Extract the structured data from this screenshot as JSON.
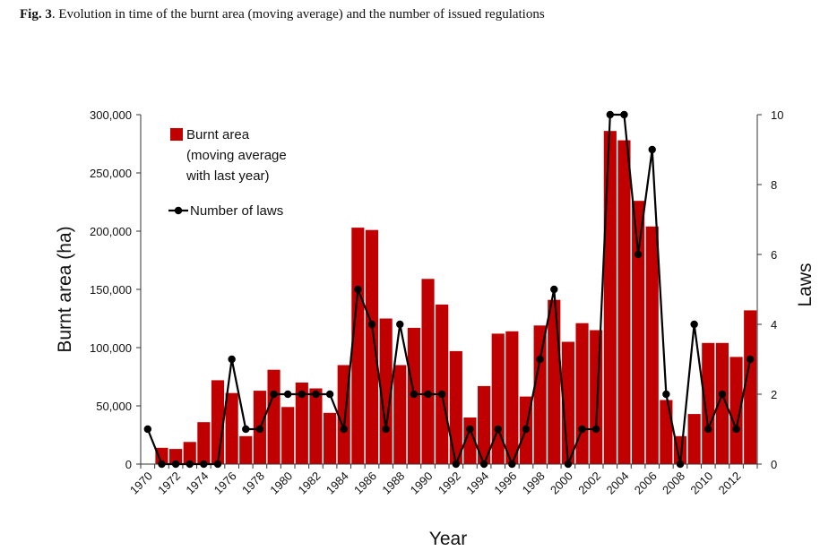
{
  "caption": {
    "fig_label": "Fig. 3",
    "text": ". Evolution in time of the burnt area (moving average) and the number of issued regulations"
  },
  "chart_data": {
    "type": "bar",
    "xlabel": "Year",
    "ylabel": "Burnt area (ha)",
    "y2label": "Laws",
    "ylim": [
      0,
      300000
    ],
    "y2lim": [
      0,
      10
    ],
    "yticks": [
      0,
      50000,
      100000,
      150000,
      200000,
      250000,
      300000
    ],
    "ytick_labels": [
      "0",
      "50,000",
      "100,000",
      "150,000",
      "200,000",
      "250,000",
      "300,000"
    ],
    "y2ticks": [
      0,
      2,
      4,
      6,
      8,
      10
    ],
    "y2tick_labels": [
      "0",
      "2",
      "4",
      "6",
      "8",
      "10"
    ],
    "x_tick_labels": [
      "1970",
      "1972",
      "1974",
      "1976",
      "1978",
      "1980",
      "1982",
      "1984",
      "1986",
      "1988",
      "1990",
      "1992",
      "1994",
      "1996",
      "1998",
      "2000",
      "2002",
      "2004",
      "2006",
      "2008",
      "2010",
      "2012"
    ],
    "grid": false,
    "legend_position": "top-left",
    "categories": [
      1970,
      1971,
      1972,
      1973,
      1974,
      1975,
      1976,
      1977,
      1978,
      1979,
      1980,
      1981,
      1982,
      1983,
      1984,
      1985,
      1986,
      1987,
      1988,
      1989,
      1990,
      1991,
      1992,
      1993,
      1994,
      1995,
      1996,
      1997,
      1998,
      1999,
      2000,
      2001,
      2002,
      2003,
      2004,
      2005,
      2006,
      2007,
      2008,
      2009,
      2010,
      2011,
      2012,
      2013
    ],
    "series": [
      {
        "name": "Burnt area (moving average with last year)",
        "legend_lines": [
          "Burnt area",
          "(moving average",
          "with last year)"
        ],
        "type": "bar",
        "axis": "left",
        "color": "#c00000",
        "values": [
          null,
          14000,
          13000,
          19000,
          36000,
          72000,
          61000,
          24000,
          63000,
          81000,
          49000,
          70000,
          65000,
          44000,
          85000,
          203000,
          201000,
          125000,
          85000,
          117000,
          159000,
          137000,
          97000,
          40000,
          67000,
          112000,
          114000,
          58000,
          119000,
          141000,
          105000,
          121000,
          115000,
          286000,
          278000,
          226000,
          204000,
          55000,
          24000,
          43000,
          104000,
          104000,
          92000,
          132000
        ]
      },
      {
        "name": "Number of laws",
        "type": "line",
        "axis": "right",
        "color": "#000000",
        "values": [
          1,
          0,
          0,
          0,
          0,
          0,
          3,
          1,
          1,
          2,
          2,
          2,
          2,
          2,
          1,
          5,
          4,
          1,
          4,
          2,
          2,
          2,
          0,
          1,
          0,
          1,
          0,
          1,
          3,
          5,
          0,
          1,
          1,
          10,
          10,
          6,
          9,
          2,
          0,
          4,
          1,
          2,
          1,
          3
        ]
      }
    ]
  }
}
